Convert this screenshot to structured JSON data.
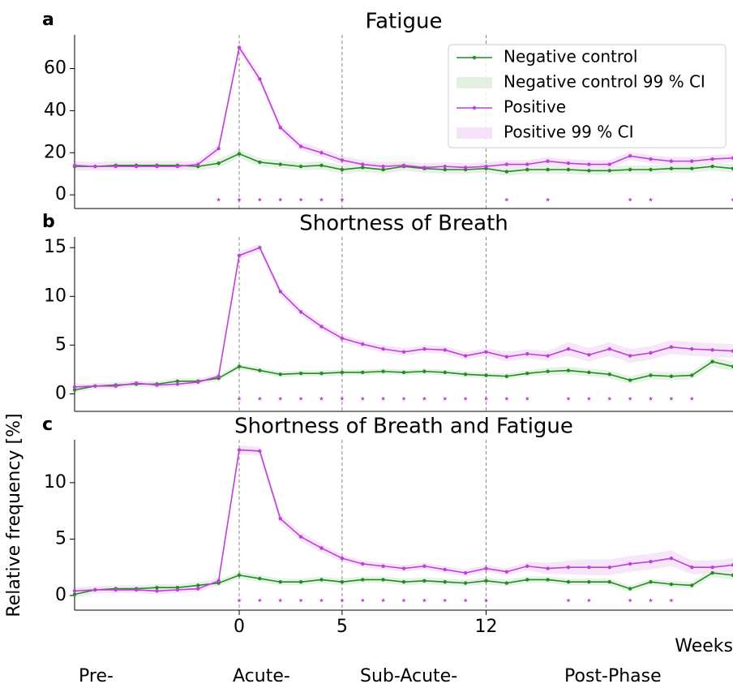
{
  "y_label": "Relative frequency [%]",
  "x_label": "Weeks",
  "phases": [
    "Pre-",
    "Acute-",
    "Sub-Acute-",
    "Post-Phase"
  ],
  "chart_data": [
    {
      "type": "line",
      "panel": "a",
      "title": "Fatigue",
      "legend": "upper right",
      "x": [
        -8,
        -7,
        -6,
        -5,
        -4,
        -3,
        -2,
        -1,
        0,
        1,
        2,
        3,
        4,
        5,
        6,
        7,
        8,
        9,
        10,
        11,
        12,
        13,
        14,
        15,
        16,
        17,
        18,
        19,
        20,
        21,
        22,
        23,
        24
      ],
      "xlim": [
        -8,
        24
      ],
      "xticks": [
        0,
        5,
        12
      ],
      "ylim": [
        -6.5,
        76
      ],
      "yticks": [
        0,
        20,
        40,
        60
      ],
      "significant_weeks": [
        -1,
        0,
        1,
        2,
        3,
        4,
        5,
        13,
        15,
        19,
        20,
        24
      ],
      "series": [
        {
          "name": "Negative control",
          "color": "#228b22",
          "ci_name": "Negative control 99 % CI",
          "ci_color": "#e3f1e3",
          "values": [
            13.5,
            13.5,
            14,
            14,
            14,
            14,
            13.5,
            15,
            19.5,
            15.5,
            14.5,
            13.5,
            14,
            12,
            13,
            12,
            13.5,
            12.5,
            12,
            12,
            12.5,
            11,
            12,
            12,
            12,
            11.5,
            11.5,
            12,
            12,
            12.5,
            12.5,
            13.5,
            12.5
          ],
          "ci": [
            2,
            2,
            2,
            2,
            2,
            2,
            2,
            2,
            2,
            2,
            2,
            2,
            2,
            2,
            2,
            2,
            2,
            2,
            2,
            2,
            2,
            2,
            2,
            2,
            2,
            2,
            2,
            2,
            2,
            2,
            2,
            2,
            2
          ]
        },
        {
          "name": "Positive",
          "color": "#bf40d9",
          "ci_name": "Positive 99 % CI",
          "ci_color": "#f6e3fa",
          "values": [
            14,
            13.5,
            13.5,
            13.5,
            13.5,
            13.5,
            14.5,
            22,
            70,
            55,
            32,
            23,
            20,
            16.5,
            14.5,
            13.5,
            14,
            13,
            13.5,
            13,
            13.5,
            14.5,
            14.5,
            16,
            15,
            14.5,
            14.5,
            18.5,
            17,
            16,
            16,
            17,
            17.5
          ],
          "ci": [
            2,
            2,
            2,
            2,
            2,
            2,
            2,
            2,
            2,
            2,
            2,
            2,
            2,
            2,
            2,
            2,
            2,
            2,
            2,
            2,
            2,
            2,
            2,
            2,
            2,
            2,
            2,
            2,
            2,
            2,
            2,
            2,
            2
          ]
        }
      ]
    },
    {
      "type": "line",
      "panel": "b",
      "title": "Shortness of Breath",
      "x": [
        -8,
        -7,
        -6,
        -5,
        -4,
        -3,
        -2,
        -1,
        0,
        1,
        2,
        3,
        4,
        5,
        6,
        7,
        8,
        9,
        10,
        11,
        12,
        13,
        14,
        15,
        16,
        17,
        18,
        19,
        20,
        21,
        22,
        23,
        24
      ],
      "xlim": [
        -8,
        24
      ],
      "xticks": [
        0,
        5,
        12
      ],
      "ylim": [
        -1.8,
        16.1
      ],
      "yticks": [
        0,
        5,
        10,
        15
      ],
      "significant_weeks": [
        0,
        1,
        2,
        3,
        4,
        5,
        6,
        7,
        8,
        9,
        10,
        11,
        12,
        13,
        14,
        16,
        17,
        18,
        19,
        20,
        21,
        22
      ],
      "series": [
        {
          "color": "#228b22",
          "ci_color": "#e3f1e3",
          "values": [
            0.4,
            0.8,
            0.9,
            1.0,
            1.0,
            1.3,
            1.3,
            1.6,
            2.8,
            2.4,
            2.0,
            2.1,
            2.1,
            2.2,
            2.2,
            2.3,
            2.2,
            2.3,
            2.2,
            2.0,
            1.9,
            1.8,
            2.1,
            2.3,
            2.4,
            2.2,
            2.0,
            1.4,
            1.9,
            1.8,
            1.9,
            3.3,
            2.8
          ],
          "ci": [
            0.3,
            0.3,
            0.3,
            0.3,
            0.3,
            0.3,
            0.3,
            0.3,
            0.3,
            0.3,
            0.3,
            0.3,
            0.3,
            0.3,
            0.3,
            0.3,
            0.3,
            0.3,
            0.3,
            0.3,
            0.3,
            0.3,
            0.3,
            0.4,
            0.4,
            0.4,
            0.4,
            0.4,
            0.4,
            0.4,
            0.4,
            0.5,
            0.5
          ]
        },
        {
          "color": "#bf40d9",
          "ci_color": "#f6e3fa",
          "values": [
            0.7,
            0.8,
            0.8,
            1.1,
            0.9,
            1.0,
            1.2,
            1.8,
            14.2,
            15.0,
            10.5,
            8.4,
            6.9,
            5.7,
            5.1,
            4.6,
            4.3,
            4.6,
            4.5,
            3.9,
            4.3,
            3.8,
            4.1,
            3.9,
            4.6,
            4.0,
            4.6,
            3.9,
            4.2,
            4.8,
            4.6,
            4.5,
            4.4
          ],
          "ci": [
            0.3,
            0.3,
            0.3,
            0.3,
            0.3,
            0.3,
            0.3,
            0.3,
            0.4,
            0.4,
            0.4,
            0.4,
            0.4,
            0.4,
            0.4,
            0.4,
            0.4,
            0.4,
            0.4,
            0.4,
            0.4,
            0.5,
            0.5,
            0.5,
            0.7,
            0.7,
            0.7,
            0.7,
            0.7,
            0.7,
            0.7,
            0.7,
            0.7
          ]
        }
      ]
    },
    {
      "type": "line",
      "panel": "c",
      "title": "Shortness of Breath and Fatigue",
      "x": [
        -8,
        -7,
        -6,
        -5,
        -4,
        -3,
        -2,
        -1,
        0,
        1,
        2,
        3,
        4,
        5,
        6,
        7,
        8,
        9,
        10,
        11,
        12,
        13,
        14,
        15,
        16,
        17,
        18,
        19,
        20,
        21,
        22,
        23,
        24
      ],
      "xlim": [
        -8,
        24
      ],
      "xticks": [
        0,
        5,
        12
      ],
      "ylim": [
        -1.3,
        13.8
      ],
      "yticks": [
        0,
        5,
        10
      ],
      "significant_weeks": [
        0,
        1,
        2,
        3,
        4,
        5,
        6,
        7,
        8,
        9,
        10,
        11,
        12,
        16,
        17,
        19,
        20,
        21
      ],
      "series": [
        {
          "color": "#228b22",
          "ci_color": "#e3f1e3",
          "values": [
            0.1,
            0.5,
            0.6,
            0.6,
            0.7,
            0.7,
            0.9,
            1.1,
            1.8,
            1.5,
            1.2,
            1.2,
            1.4,
            1.2,
            1.4,
            1.4,
            1.2,
            1.3,
            1.2,
            1.1,
            1.3,
            1.1,
            1.4,
            1.4,
            1.2,
            1.2,
            1.2,
            0.6,
            1.2,
            1.0,
            0.9,
            2.0,
            1.8
          ],
          "ci": [
            0.3,
            0.3,
            0.3,
            0.3,
            0.3,
            0.3,
            0.3,
            0.3,
            0.3,
            0.3,
            0.3,
            0.3,
            0.3,
            0.3,
            0.3,
            0.3,
            0.3,
            0.3,
            0.3,
            0.3,
            0.3,
            0.3,
            0.3,
            0.3,
            0.3,
            0.3,
            0.3,
            0.3,
            0.3,
            0.3,
            0.3,
            0.4,
            0.4
          ]
        },
        {
          "color": "#bf40d9",
          "ci_color": "#f6e3fa",
          "values": [
            0.4,
            0.5,
            0.5,
            0.5,
            0.4,
            0.5,
            0.6,
            1.3,
            12.9,
            12.8,
            6.8,
            5.2,
            4.2,
            3.3,
            2.8,
            2.6,
            2.4,
            2.6,
            2.3,
            2.0,
            2.4,
            2.1,
            2.6,
            2.4,
            2.5,
            2.5,
            2.5,
            2.8,
            3.0,
            3.3,
            2.5,
            2.5,
            2.7
          ],
          "ci": [
            0.3,
            0.3,
            0.3,
            0.3,
            0.3,
            0.3,
            0.3,
            0.3,
            0.4,
            0.4,
            0.4,
            0.4,
            0.4,
            0.3,
            0.3,
            0.3,
            0.3,
            0.3,
            0.3,
            0.3,
            0.3,
            0.3,
            0.4,
            0.5,
            0.6,
            0.7,
            0.7,
            0.7,
            0.7,
            0.7,
            0.6,
            0.6,
            0.6
          ]
        }
      ]
    }
  ]
}
